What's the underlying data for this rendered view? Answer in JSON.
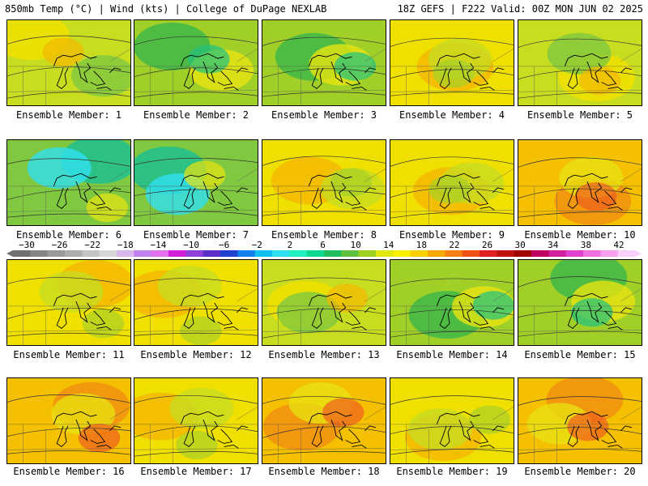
{
  "header": {
    "left": "850mb Temp (°C) | Wind (kts) | College of DuPage NEXLAB",
    "right": "18Z GEFS | F222 Valid: 00Z MON JUN 02 2025"
  },
  "colorbar": {
    "ticks": [
      "−30",
      "−26",
      "−22",
      "−18",
      "−14",
      "−10",
      "−6",
      "−2",
      "2",
      "6",
      "10",
      "14",
      "18",
      "22",
      "26",
      "30",
      "34",
      "38",
      "42"
    ],
    "colors": [
      "#707070",
      "#858585",
      "#9a9a9a",
      "#aeaeae",
      "#c4c4c4",
      "#d7d7d7",
      "#d8b8ec",
      "#c080f0",
      "#e070f0",
      "#d020d8",
      "#9040d8",
      "#5a30c8",
      "#2040d0",
      "#1080f0",
      "#10c0f0",
      "#30e0f0",
      "#20f0c0",
      "#10d890",
      "#20c060",
      "#60c040",
      "#a0d020",
      "#e0e810",
      "#f8f000",
      "#f8d000",
      "#f8a800",
      "#f88010",
      "#f05010",
      "#e02020",
      "#c01010",
      "#a00000",
      "#c00060",
      "#d020a0",
      "#e040d0",
      "#f070e0",
      "#f8a0f0",
      "#fcd0fc"
    ]
  },
  "members": [
    {
      "label": "Ensemble Member: 1",
      "theme": "mixed"
    },
    {
      "label": "Ensemble Member: 2",
      "theme": "cool"
    },
    {
      "label": "Ensemble Member: 3",
      "theme": "cool"
    },
    {
      "label": "Ensemble Member: 4",
      "theme": "warm"
    },
    {
      "label": "Ensemble Member: 5",
      "theme": "mixed"
    },
    {
      "label": "Ensemble Member: 6",
      "theme": "cold"
    },
    {
      "label": "Ensemble Member: 7",
      "theme": "cold"
    },
    {
      "label": "Ensemble Member: 8",
      "theme": "warm"
    },
    {
      "label": "Ensemble Member: 9",
      "theme": "warm"
    },
    {
      "label": "Ensemble Member: 10",
      "theme": "hot"
    },
    {
      "label": "Ensemble Member: 11",
      "theme": "warm"
    },
    {
      "label": "Ensemble Member: 12",
      "theme": "warm"
    },
    {
      "label": "Ensemble Member: 13",
      "theme": "mixed"
    },
    {
      "label": "Ensemble Member: 14",
      "theme": "cool"
    },
    {
      "label": "Ensemble Member: 15",
      "theme": "cool"
    },
    {
      "label": "Ensemble Member: 16",
      "theme": "hot"
    },
    {
      "label": "Ensemble Member: 17",
      "theme": "warm"
    },
    {
      "label": "Ensemble Member: 18",
      "theme": "hot"
    },
    {
      "label": "Ensemble Member: 19",
      "theme": "warm"
    },
    {
      "label": "Ensemble Member: 20",
      "theme": "hot"
    }
  ]
}
